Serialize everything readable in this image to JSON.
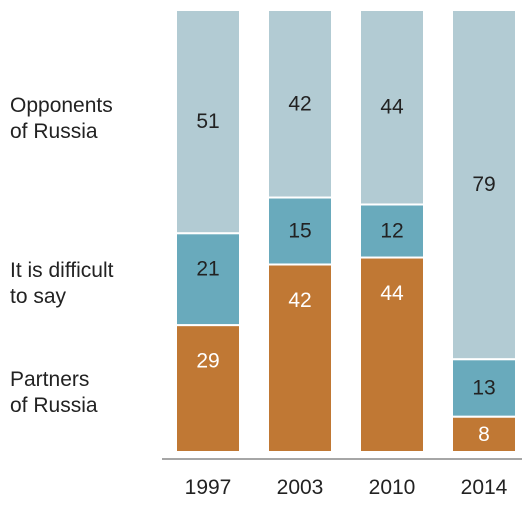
{
  "chart_data": {
    "type": "bar",
    "stacked": true,
    "categories": [
      "1997",
      "2003",
      "2010",
      "2014"
    ],
    "series": [
      {
        "name": "Partners of Russia",
        "values": [
          29,
          42,
          44,
          8
        ]
      },
      {
        "name": "It is difficult to say",
        "values": [
          21,
          15,
          12,
          13
        ]
      },
      {
        "name": "Opponents of Russia",
        "values": [
          51,
          42,
          44,
          79
        ]
      }
    ],
    "legend": {
      "opponents": [
        "Opponents",
        "of Russia"
      ],
      "difficult": [
        "It is difficult",
        "to say"
      ],
      "partners": [
        "Partners",
        "of Russia"
      ]
    },
    "colors": {
      "partners": "#c07834",
      "difficult": "#69aabc",
      "opponents": "#b2cbd3",
      "partners_text": "#ffffff",
      "other_text": "#222222",
      "baseline": "#888888"
    },
    "title": "",
    "xlabel": "",
    "ylabel": "",
    "grid": false,
    "legend_placement": "left"
  }
}
